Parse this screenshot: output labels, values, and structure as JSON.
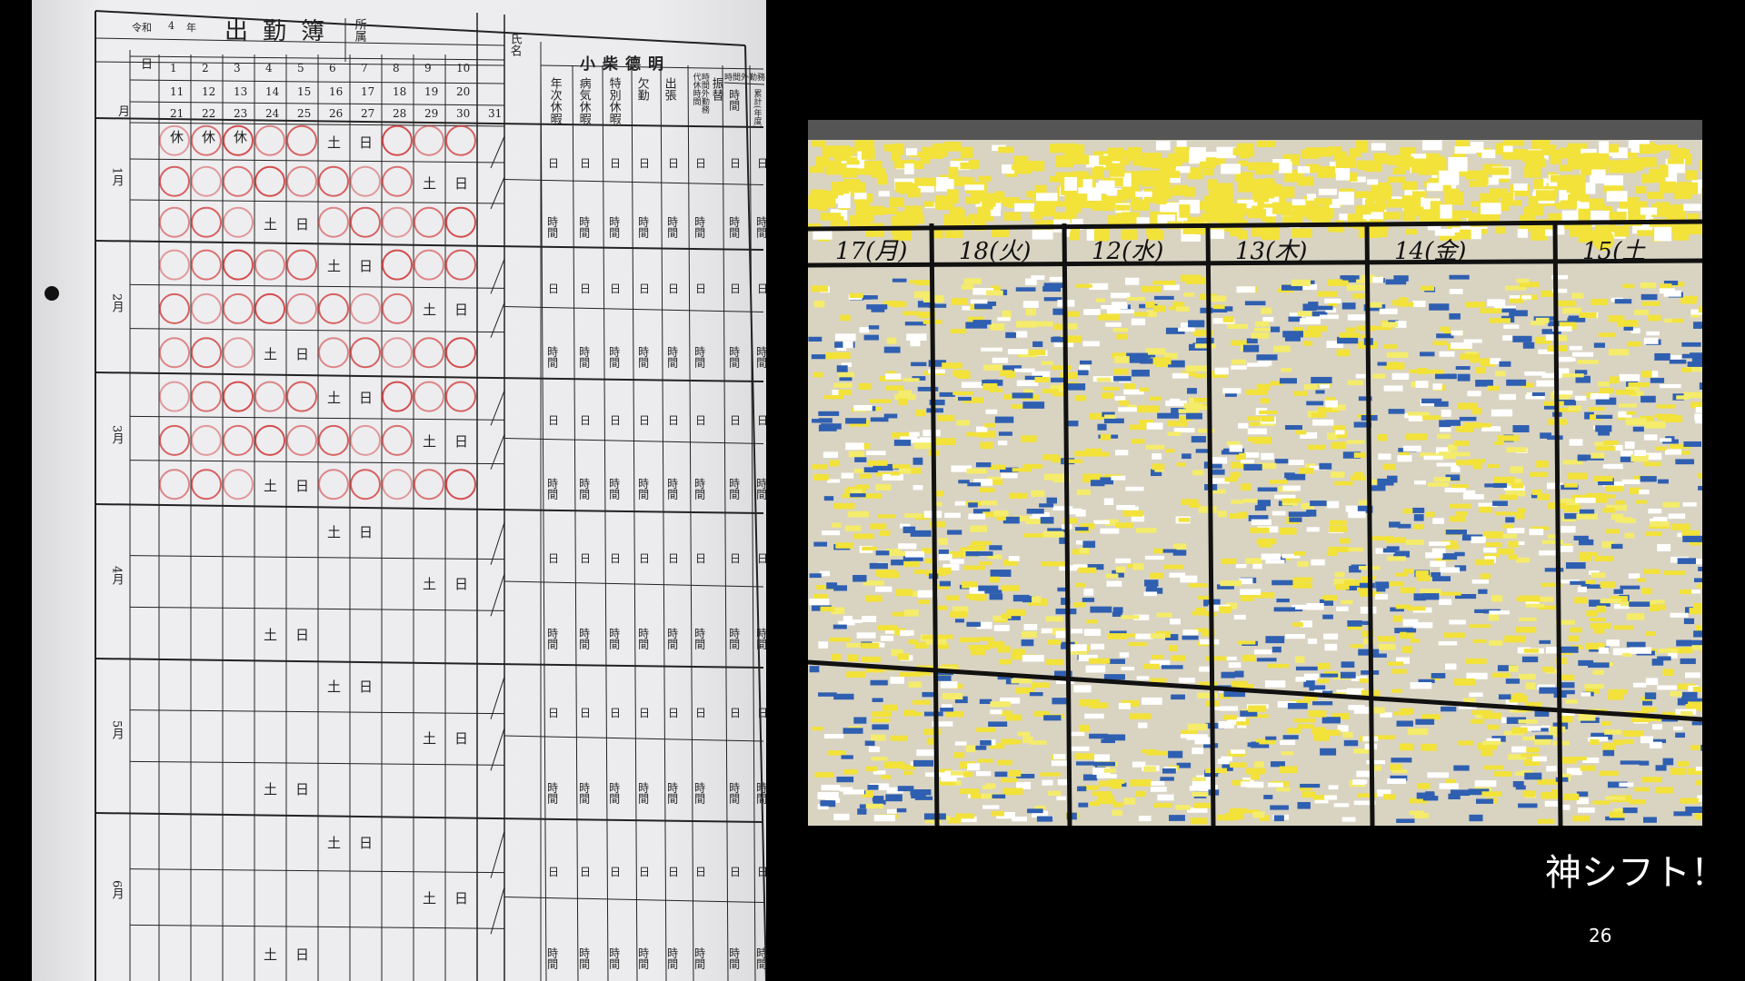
{
  "slide": {
    "caption": "神シフト！",
    "page_number": "26"
  },
  "attendance_sheet": {
    "era": "令和",
    "year": "4",
    "year_unit": "年",
    "title": "出勤簿",
    "affiliation_label": "所属",
    "name_label": "氏名",
    "name": "小柴德明",
    "day_label": "日",
    "month_label": "月",
    "day_rows": [
      [
        "1",
        "2",
        "3",
        "4",
        "5",
        "6",
        "7",
        "8",
        "9",
        "10"
      ],
      [
        "11",
        "12",
        "13",
        "14",
        "15",
        "16",
        "17",
        "18",
        "19",
        "20"
      ],
      [
        "21",
        "22",
        "23",
        "24",
        "25",
        "26",
        "27",
        "28",
        "29",
        "30",
        "31"
      ]
    ],
    "columns": [
      "年次休暇",
      "病気休暇",
      "特別休暇",
      "欠勤",
      "出張",
      "時間外勤務代休時間",
      "振替",
      "時間外勤務"
    ],
    "overtime_sub": [
      "時間",
      "累計(年度)"
    ],
    "months": [
      "1月",
      "2月",
      "3月",
      "4月",
      "5月",
      "6月"
    ],
    "unit_day": "日",
    "unit_hours": "時間",
    "marks": {
      "holiday": "休",
      "saturday": "土",
      "sunday": "日"
    },
    "stamp_color": "#d03030"
  },
  "whiteboard": {
    "days": [
      "17(月)",
      "18(火)",
      "12(水)",
      "13(木)",
      "14(金)",
      "15(土"
    ],
    "note_colors": [
      "#f2e23a",
      "#ffffff",
      "#2f5fb0",
      "#f4ec6a",
      "#e8e8e0"
    ]
  }
}
